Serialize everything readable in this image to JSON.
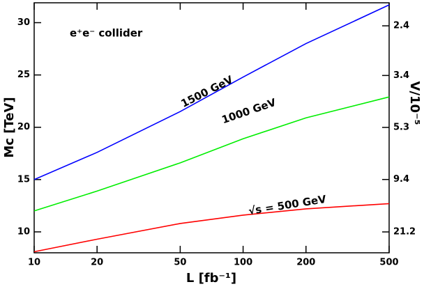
{
  "chart_data": {
    "type": "line",
    "annotation": "e⁺e⁻ collider",
    "x_label": "L [fb⁻¹]",
    "y_label": "Mc [TeV]",
    "y2_label": "V/10⁻⁵",
    "x": [
      10,
      20,
      50,
      100,
      200,
      500
    ],
    "series": [
      {
        "name": "1500 GeV",
        "color": "#0000ff",
        "values": [
          15.0,
          17.6,
          21.5,
          24.8,
          28.0,
          31.7
        ]
      },
      {
        "name": "1000 GeV",
        "color": "#00ee00",
        "values": [
          12.0,
          13.9,
          16.6,
          18.9,
          20.9,
          22.9
        ]
      },
      {
        "name": "√s = 500 GeV",
        "color": "#ff0000",
        "values": [
          8.1,
          9.3,
          10.8,
          11.6,
          12.2,
          12.7
        ]
      }
    ],
    "xscale": "log",
    "xlim": [
      10,
      500
    ],
    "xticks": [
      10,
      20,
      50,
      100,
      200,
      500
    ],
    "ylim": [
      8,
      31.9
    ],
    "yticks": [
      10,
      15,
      20,
      25,
      30
    ],
    "y2scale": "inverse-square",
    "y2lim": [
      33.1,
      2.08
    ],
    "y2ticks": [
      2.4,
      3.4,
      5.3,
      9.4,
      21.2
    ]
  }
}
